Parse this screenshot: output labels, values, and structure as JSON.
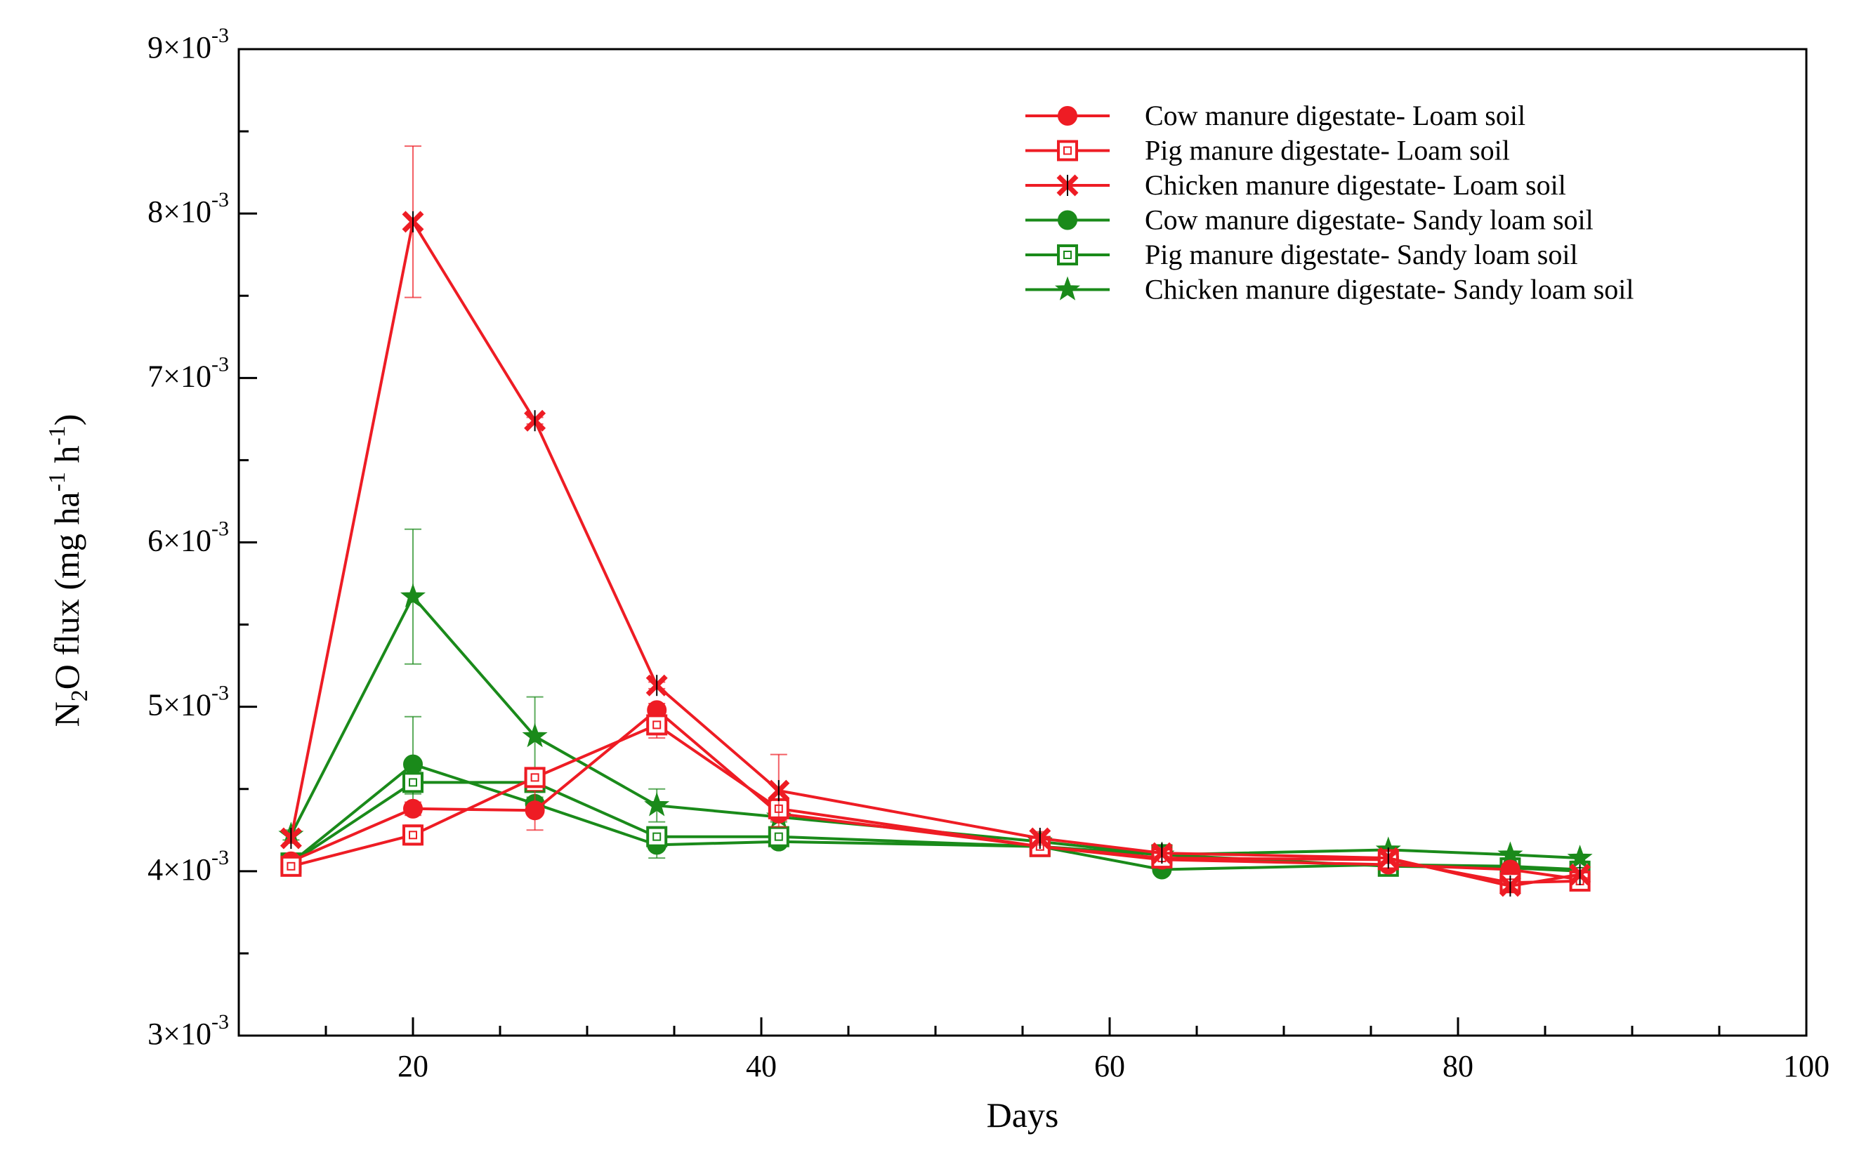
{
  "chart_data": {
    "type": "line",
    "title": "",
    "xlabel": "Days",
    "ylabel": {
      "prefix": "N",
      "sub": "2",
      "mid": "O flux (mg ha",
      "sup1": "-1",
      "mid2": " h",
      "sup2": "-1",
      "suffix": ")"
    },
    "xlim": [
      10,
      100
    ],
    "ylim": [
      0.003,
      0.009
    ],
    "x_ticks": [
      {
        "value": 20,
        "label": "20"
      },
      {
        "value": 40,
        "label": "40"
      },
      {
        "value": 60,
        "label": "60"
      },
      {
        "value": 80,
        "label": "80"
      },
      {
        "value": 100,
        "label": "100"
      }
    ],
    "x_minor_step": 5,
    "y_ticks": [
      {
        "value": 0.003,
        "mant": "3",
        "base": "×10",
        "exp": "-3"
      },
      {
        "value": 0.004,
        "mant": "4",
        "base": "×10",
        "exp": "-3"
      },
      {
        "value": 0.005,
        "mant": "5",
        "base": "×10",
        "exp": "-3"
      },
      {
        "value": 0.006,
        "mant": "6",
        "base": "×10",
        "exp": "-3"
      },
      {
        "value": 0.007,
        "mant": "7",
        "base": "×10",
        "exp": "-3"
      },
      {
        "value": 0.008,
        "mant": "8",
        "base": "×10",
        "exp": "-3"
      },
      {
        "value": 0.009,
        "mant": "9",
        "base": "×10",
        "exp": "-3"
      }
    ],
    "y_minor_step": 0.0005,
    "legend_position": "top-right",
    "x": [
      13,
      20,
      27,
      34,
      41,
      56,
      63,
      76,
      83,
      87
    ],
    "series": [
      {
        "name": "Cow manure digestate- Loam soil",
        "color": "#ee1c24",
        "marker": "circle",
        "values": [
          0.00406,
          0.00438,
          0.00437,
          0.00498,
          0.00435,
          0.00415,
          0.00407,
          0.00404,
          0.00401,
          0.00395
        ],
        "errors": [
          2e-05,
          4e-05,
          0.00012,
          4e-05,
          4e-05,
          2e-05,
          2e-05,
          2e-05,
          2e-05,
          2e-05
        ]
      },
      {
        "name": "Pig manure digestate- Loam soil",
        "color": "#ee1c24",
        "marker": "square",
        "values": [
          0.00403,
          0.00422,
          0.00457,
          0.00489,
          0.00438,
          0.00415,
          0.00408,
          0.00407,
          0.00393,
          0.00394
        ],
        "errors": [
          2e-05,
          6e-05,
          4e-05,
          8e-05,
          5e-05,
          2e-05,
          2e-05,
          2e-05,
          2e-05,
          2e-05
        ]
      },
      {
        "name": "Chicken manure digestate- Loam soil",
        "color": "#ee1c24",
        "marker": "xstar",
        "values": [
          0.0042,
          0.00795,
          0.00674,
          0.00513,
          0.00449,
          0.0042,
          0.00411,
          0.00408,
          0.00391,
          0.00398
        ],
        "errors": [
          3e-05,
          0.00046,
          2e-05,
          2e-05,
          0.00022,
          4e-05,
          2e-05,
          2e-05,
          2e-05,
          2e-05
        ]
      },
      {
        "name": "Cow manure digestate- Sandy loam soil",
        "color": "#1a8a1a",
        "marker": "circle",
        "values": [
          0.00405,
          0.00465,
          0.00441,
          0.00416,
          0.00418,
          0.00415,
          0.00401,
          0.00404,
          0.00403,
          0.00401
        ],
        "errors": [
          2e-05,
          0.00029,
          4e-05,
          8e-05,
          2e-05,
          2e-05,
          2e-05,
          2e-05,
          2e-05,
          2e-05
        ]
      },
      {
        "name": "Pig manure digestate- Sandy loam soil",
        "color": "#1a8a1a",
        "marker": "square",
        "values": [
          0.00405,
          0.00454,
          0.00454,
          0.00421,
          0.00421,
          0.00415,
          0.0041,
          0.00403,
          0.00402,
          0.004
        ],
        "errors": [
          2e-05,
          7e-05,
          4e-05,
          5e-05,
          3e-05,
          2e-05,
          2e-05,
          2e-05,
          2e-05,
          2e-05
        ]
      },
      {
        "name": "Chicken manure digestate- Sandy loam soil",
        "color": "#1a8a1a",
        "marker": "star",
        "values": [
          0.00422,
          0.00567,
          0.00482,
          0.0044,
          0.00433,
          0.00418,
          0.0041,
          0.00413,
          0.0041,
          0.00408
        ],
        "errors": [
          3e-05,
          0.00041,
          0.00024,
          0.0001,
          3e-05,
          2e-05,
          2e-05,
          2e-05,
          2e-05,
          2e-05
        ]
      }
    ]
  }
}
